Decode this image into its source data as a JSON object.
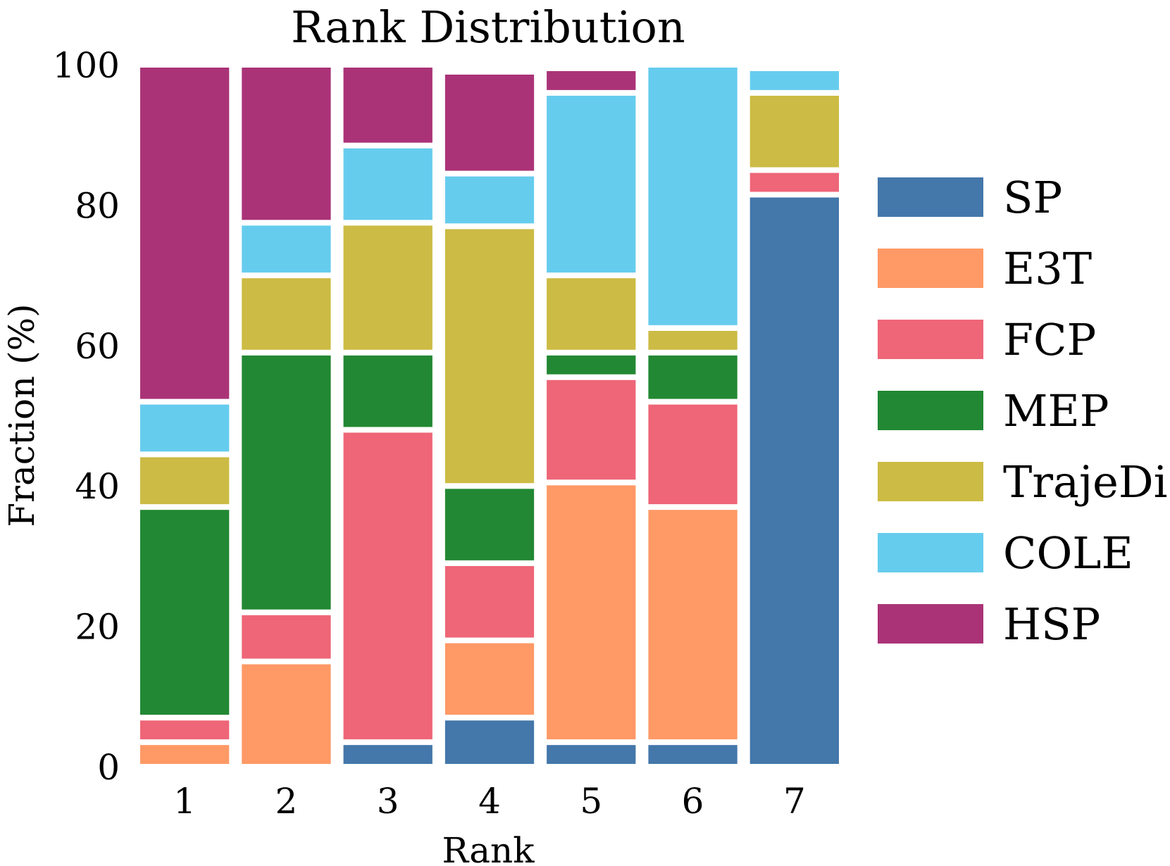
{
  "chart_data": {
    "type": "bar",
    "stacked": true,
    "title": "Rank Distribution",
    "xlabel": "Rank",
    "ylabel": "Fraction (%)",
    "ylim": [
      0,
      100
    ],
    "yticks": [
      "0",
      "20",
      "40",
      "60",
      "80",
      "100"
    ],
    "categories": [
      "1",
      "2",
      "3",
      "4",
      "5",
      "6",
      "7"
    ],
    "grid": false,
    "legend_position": "right",
    "series": [
      {
        "name": "SP",
        "color": "#4477aa",
        "values": [
          0,
          0,
          3.5,
          7,
          3.5,
          3.5,
          81.5
        ]
      },
      {
        "name": "E3T",
        "color": "#ff9966",
        "values": [
          3.5,
          15,
          0,
          11,
          37,
          33.5,
          0
        ]
      },
      {
        "name": "FCP",
        "color": "#ee6677",
        "values": [
          3.5,
          7,
          44.5,
          11,
          15,
          15,
          3.5
        ]
      },
      {
        "name": "MEP",
        "color": "#228833",
        "values": [
          30,
          37,
          11,
          11,
          3.5,
          7,
          0
        ]
      },
      {
        "name": "TrajeDi",
        "color": "#ccbb44",
        "values": [
          7.5,
          11,
          18.5,
          37,
          11,
          3.5,
          11
        ]
      },
      {
        "name": "COLE",
        "color": "#66ccee",
        "values": [
          7.5,
          7.5,
          11,
          7.5,
          26,
          37.5,
          3.5
        ]
      },
      {
        "name": "HSP",
        "color": "#aa3377",
        "values": [
          48,
          22.5,
          11.5,
          14.5,
          3.5,
          0,
          0
        ]
      }
    ]
  }
}
